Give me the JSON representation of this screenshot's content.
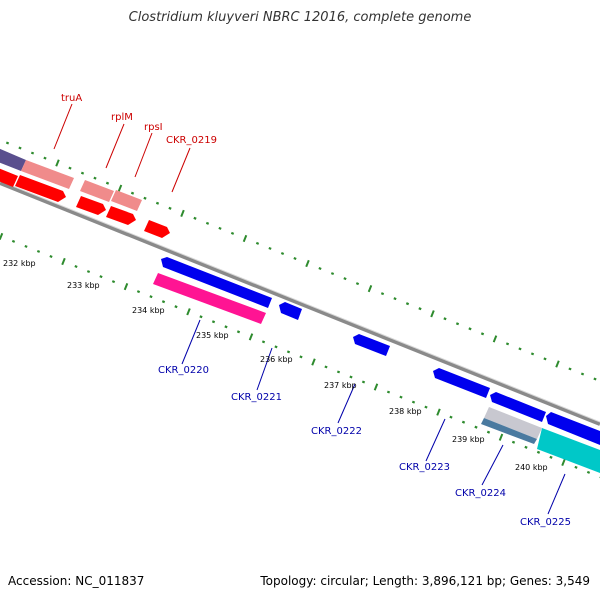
{
  "title": "Clostridium kluyveri NBRC 12016, complete genome",
  "footer": {
    "accession": "Accession: NC_011837",
    "summary": "Topology: circular; Length: 3,896,121 bp; Genes: 3,549"
  },
  "colors": {
    "backbone": "#8a8a8a",
    "tick": "#2e8b2e",
    "forward_label": "#cc0000",
    "reverse_label": "#0000aa"
  },
  "scale_labels": [
    "232 kbp",
    "233 kbp",
    "234 kbp",
    "235 kbp",
    "236 kbp",
    "237 kbp",
    "238 kbp",
    "239 kbp",
    "240 kbp"
  ],
  "forward_labels": [
    "truA",
    "rplM",
    "rpsI",
    "CKR_0219"
  ],
  "reverse_labels": [
    "CKR_0220",
    "CKR_0221",
    "CKR_0222",
    "CKR_0223",
    "CKR_0224",
    "CKR_0225"
  ]
}
